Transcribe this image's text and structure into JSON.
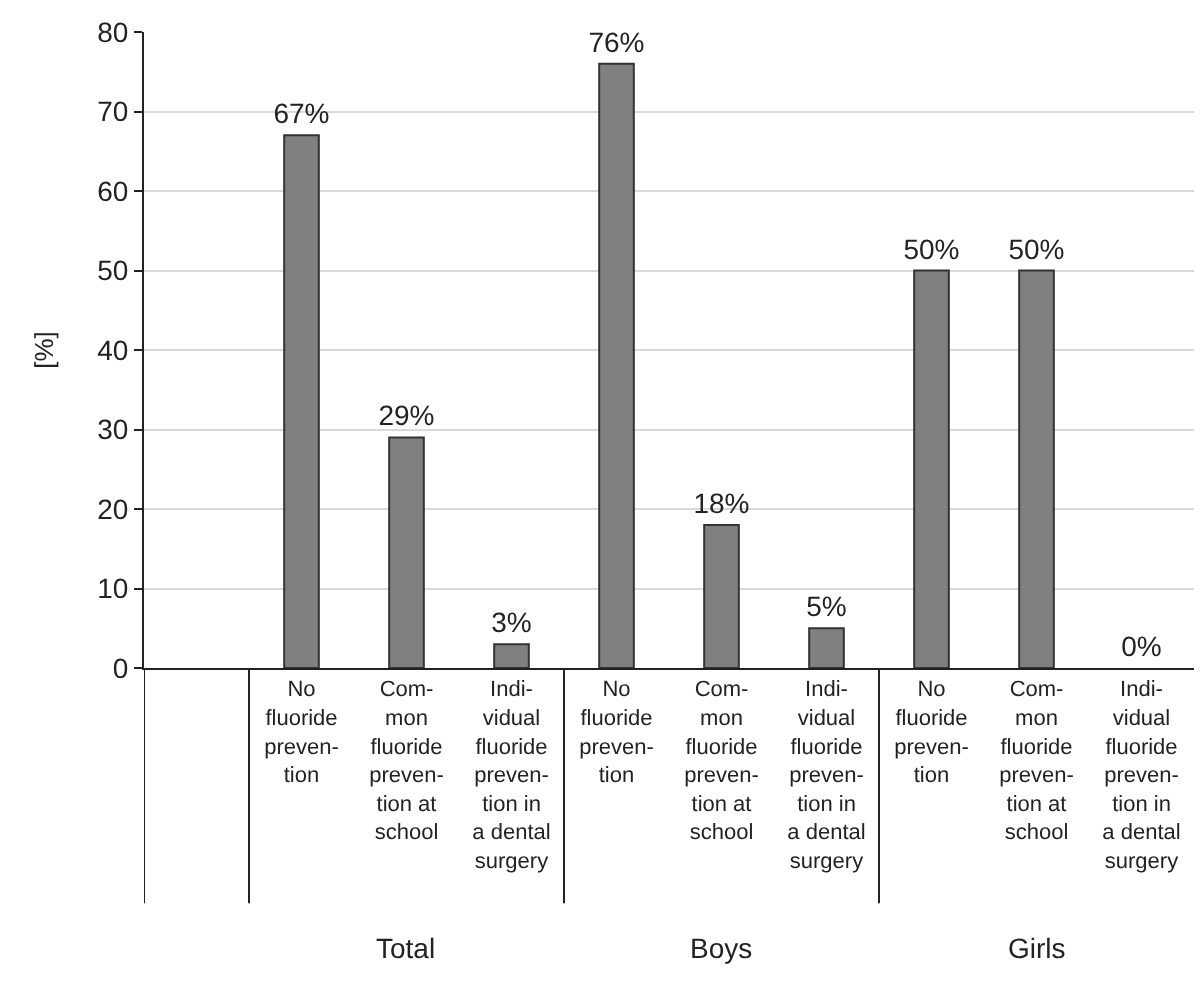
{
  "chart_data": {
    "type": "bar",
    "ylabel": "[%]",
    "categories": [
      null,
      "No\nfluoride\npreven-\ntion",
      "Com-\nmon\nfluoride\npreven-\ntion at\nschool",
      "Indi-\nvidual\nfluoride\npreven-\ntion in\na dental\nsurgery",
      "No\nfluoride\npreven-\ntion",
      "Com-\nmon\nfluoride\npreven-\ntion at\nschool",
      "Indi-\nvidual\nfluoride\npreven-\ntion in\na dental\nsurgery",
      "No\nfluoride\npreven-\ntion",
      "Com-\nmon\nfluoride\npreven-\ntion at\nschool",
      "Indi-\nvidual\nfluoride\npreven-\ntion in\na dental\nsurgery"
    ],
    "values": [
      null,
      67,
      29,
      3,
      76,
      18,
      5,
      50,
      50,
      0
    ],
    "value_labels": [
      null,
      "67%",
      "29%",
      "3%",
      "76%",
      "18%",
      "5%",
      "50%",
      "50%",
      "0%"
    ],
    "color": "#808080",
    "ylim": [
      0,
      80
    ],
    "yticks": [
      0,
      10,
      20,
      30,
      40,
      50,
      60,
      70,
      80
    ],
    "grid": "y",
    "annotations": [
      "Total",
      "Boys",
      "Girls"
    ]
  }
}
